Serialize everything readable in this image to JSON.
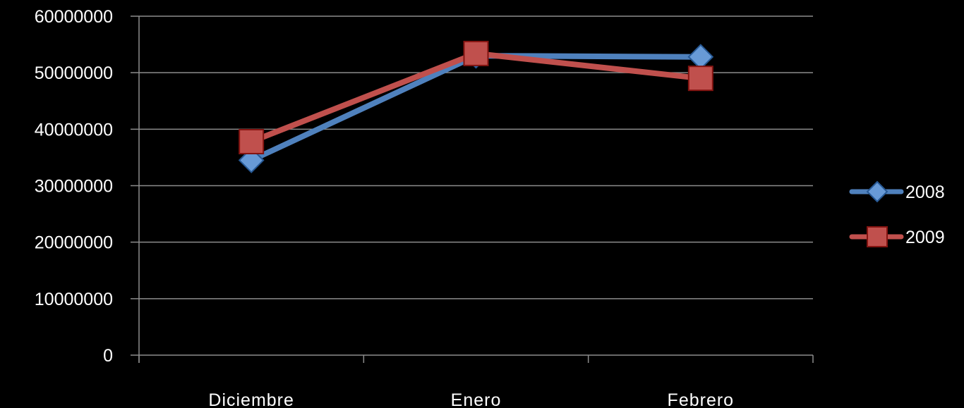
{
  "chart_data": {
    "type": "line",
    "categories": [
      "Diciembre",
      "Enero",
      "Febrero"
    ],
    "series": [
      {
        "name": "2008",
        "values": [
          34500000,
          53000000,
          52800000
        ],
        "color": "#4f81bd",
        "marker": "diamond"
      },
      {
        "name": "2009",
        "values": [
          37800000,
          53400000,
          49000000
        ],
        "color": "#c0504d",
        "marker": "square"
      }
    ],
    "y_ticks": [
      "0",
      "10000000",
      "20000000",
      "30000000",
      "40000000",
      "50000000",
      "60000000"
    ],
    "ylim": [
      0,
      60000000
    ],
    "title": "",
    "xlabel": "",
    "ylabel": "",
    "grid": true,
    "legend_position": "right",
    "background": "#000000",
    "gridline_color": "#8c8c8c",
    "text_color": "#ffffff"
  }
}
